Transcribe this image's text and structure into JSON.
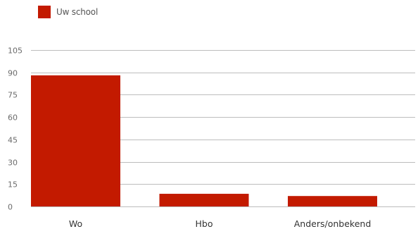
{
  "chart_data": {
    "type": "bar",
    "categories": [
      "Wo",
      "Hbo",
      "Anders/onbekend"
    ],
    "series": [
      {
        "name": "Uw school",
        "values": [
          88,
          8.5,
          7
        ],
        "color": "#c31a00"
      }
    ],
    "yticks": [
      "0",
      "15",
      "30",
      "45",
      "60",
      "75",
      "90",
      "105"
    ],
    "ylim": [
      0,
      105
    ],
    "grid": true,
    "legend": "top-left"
  }
}
